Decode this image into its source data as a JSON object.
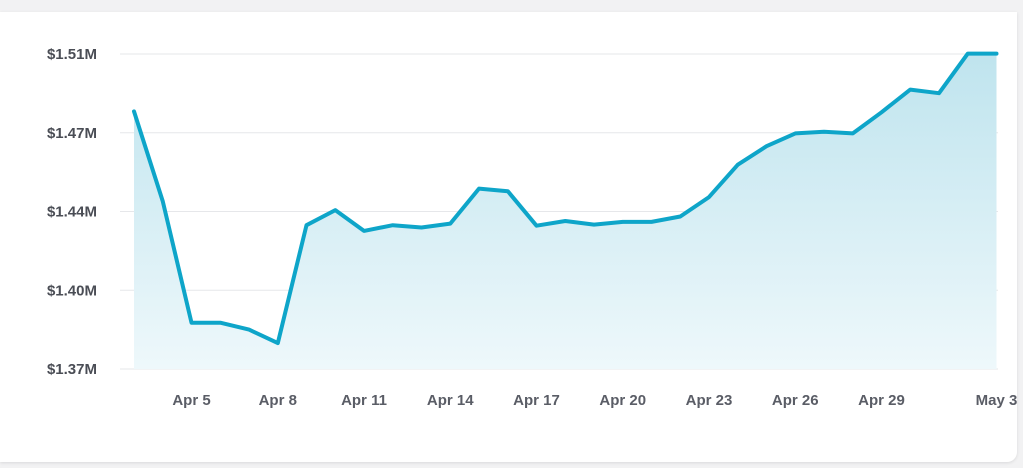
{
  "chart_data": {
    "type": "area",
    "title": "",
    "xlabel": "",
    "ylabel": "",
    "ylim": [
      1.37,
      1.51
    ],
    "y_ticks": [
      "$1.37M",
      "$1.40M",
      "$1.44M",
      "$1.47M",
      "$1.51M"
    ],
    "y_tick_values": [
      1.37,
      1.405,
      1.44,
      1.475,
      1.51
    ],
    "x_ticks": [
      "Apr 5",
      "Apr 8",
      "Apr 11",
      "Apr 14",
      "Apr 17",
      "Apr 20",
      "Apr 23",
      "Apr 26",
      "Apr 29",
      "May 3"
    ],
    "x_tick_days": [
      5,
      8,
      11,
      14,
      17,
      20,
      23,
      26,
      29,
      33
    ],
    "grid": true,
    "colors": {
      "line": "#0ea5c9",
      "fill_top": "#bfe4ee",
      "fill_bottom": "#eef8fb",
      "grid": "#e6e7ea"
    },
    "series": [
      {
        "x": [
          3,
          4,
          5,
          6,
          7,
          8,
          9,
          10,
          11,
          12,
          13,
          14,
          15,
          16,
          17,
          18,
          19,
          20,
          21,
          22,
          23,
          24,
          25,
          26,
          27,
          28,
          29,
          30,
          31,
          32,
          33
        ],
        "values": [
          1.4845,
          1.4445,
          1.3906,
          1.3906,
          1.3875,
          1.3815,
          1.4339,
          1.4406,
          1.4314,
          1.4339,
          1.4329,
          1.4346,
          1.4502,
          1.449,
          1.4337,
          1.4358,
          1.4342,
          1.4354,
          1.4354,
          1.4378,
          1.4464,
          1.4608,
          1.469,
          1.4747,
          1.4754,
          1.4747,
          1.4841,
          1.4942,
          1.4926,
          1.5102,
          1.5102
        ]
      }
    ]
  }
}
